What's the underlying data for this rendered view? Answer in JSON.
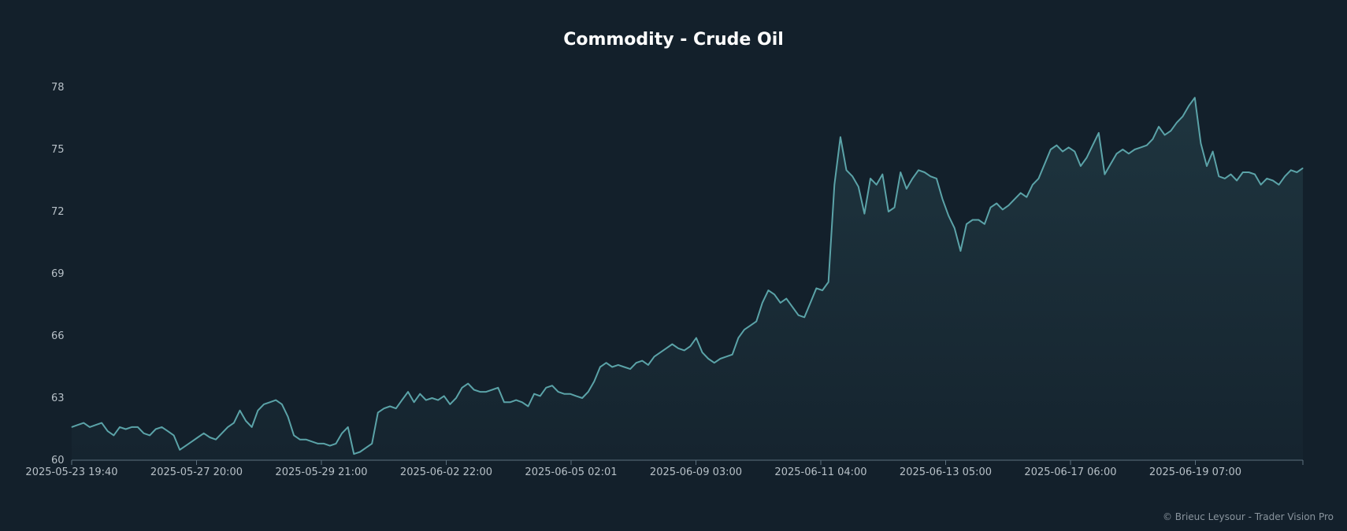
{
  "chart_data": {
    "type": "area",
    "title": "Commodity - Crude Oil",
    "xlabel": "",
    "ylabel": "",
    "ylim": [
      60,
      78
    ],
    "yticks": [
      60,
      63,
      66,
      69,
      72,
      75,
      78
    ],
    "xtick_labels": [
      "2025-05-23 19:40",
      "2025-05-27 20:00",
      "2025-05-29 21:00",
      "2025-06-02 22:00",
      "2025-06-05 02:01",
      "2025-06-09 03:00",
      "2025-06-11 04:00",
      "2025-06-13 05:00",
      "2025-06-17 06:00",
      "2025-06-19 07:00"
    ],
    "grid": false,
    "legend": "none",
    "colors": {
      "background": "#13202b",
      "line": "#5ba3a8",
      "axis": "#5c6f7c"
    },
    "series": [
      {
        "values": [
          61.6,
          61.7,
          61.8,
          61.6,
          61.7,
          61.8,
          61.4,
          61.2,
          61.6,
          61.5,
          61.6,
          61.6,
          61.3,
          61.2,
          61.5,
          61.6,
          61.4,
          61.2,
          60.5,
          60.7,
          60.9,
          61.1,
          61.3,
          61.1,
          61.0,
          61.3,
          61.6,
          61.8,
          62.4,
          61.9,
          61.6,
          62.4,
          62.7,
          62.8,
          62.9,
          62.7,
          62.1,
          61.2,
          61.0,
          61.0,
          60.9,
          60.8,
          60.8,
          60.7,
          60.8,
          61.3,
          61.6,
          60.3,
          60.4,
          60.6,
          60.8,
          62.3,
          62.5,
          62.6,
          62.5,
          62.9,
          63.3,
          62.8,
          63.2,
          62.9,
          63.0,
          62.9,
          63.1,
          62.7,
          63.0,
          63.5,
          63.7,
          63.4,
          63.3,
          63.3,
          63.4,
          63.5,
          62.8,
          62.8,
          62.9,
          62.8,
          62.6,
          63.2,
          63.1,
          63.5,
          63.6,
          63.3,
          63.2,
          63.2,
          63.1,
          63.0,
          63.3,
          63.8,
          64.5,
          64.7,
          64.5,
          64.6,
          64.5,
          64.4,
          64.7,
          64.8,
          64.6,
          65.0,
          65.2,
          65.4,
          65.6,
          65.4,
          65.3,
          65.5,
          65.9,
          65.2,
          64.9,
          64.7,
          64.9,
          65.0,
          65.1,
          65.9,
          66.3,
          66.5,
          66.7,
          67.6,
          68.2,
          68.0,
          67.6,
          67.8,
          67.4,
          67.0,
          66.9,
          67.6,
          68.3,
          68.2,
          68.6,
          73.3,
          75.6,
          74.0,
          73.7,
          73.2,
          71.9,
          73.6,
          73.3,
          73.8,
          72.0,
          72.2,
          73.9,
          73.1,
          73.6,
          74.0,
          73.9,
          73.7,
          73.6,
          72.6,
          71.8,
          71.2,
          70.1,
          71.4,
          71.6,
          71.6,
          71.4,
          72.2,
          72.4,
          72.1,
          72.3,
          72.6,
          72.9,
          72.7,
          73.3,
          73.6,
          74.3,
          75.0,
          75.2,
          74.9,
          75.1,
          74.9,
          74.2,
          74.6,
          75.2,
          75.8,
          73.8,
          74.3,
          74.8,
          75.0,
          74.8,
          75.0,
          75.1,
          75.2,
          75.5,
          76.1,
          75.7,
          75.9,
          76.3,
          76.6,
          77.1,
          77.5,
          75.3,
          74.2,
          74.9,
          73.7,
          73.6,
          73.8,
          73.5,
          73.9,
          73.9,
          73.8,
          73.3,
          73.6,
          73.5,
          73.3,
          73.7,
          74.0,
          73.9,
          74.1
        ]
      }
    ]
  },
  "footer": {
    "credit": "© Brieuc Leysour - Trader Vision Pro"
  }
}
